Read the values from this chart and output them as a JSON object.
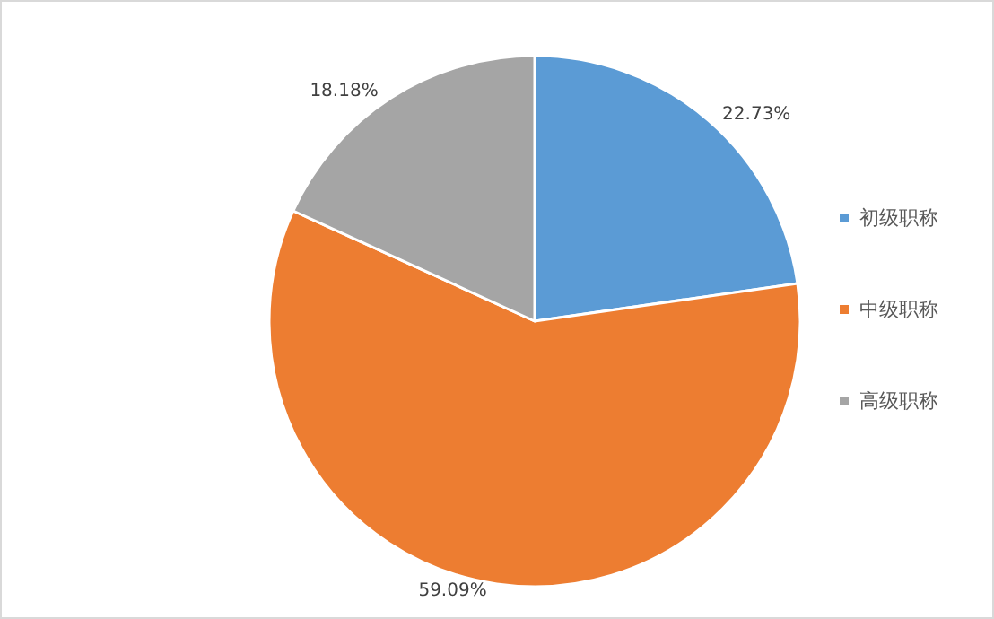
{
  "chart_data": {
    "type": "pie",
    "categories": [
      "初级职称",
      "中级职称",
      "高级职称"
    ],
    "values": [
      22.73,
      59.09,
      18.18
    ],
    "colors": [
      "#5b9bd5",
      "#ed7d31",
      "#a5a5a5"
    ],
    "value_labels": [
      "22.73%",
      "59.09%",
      "18.18%"
    ],
    "legend": "right"
  }
}
